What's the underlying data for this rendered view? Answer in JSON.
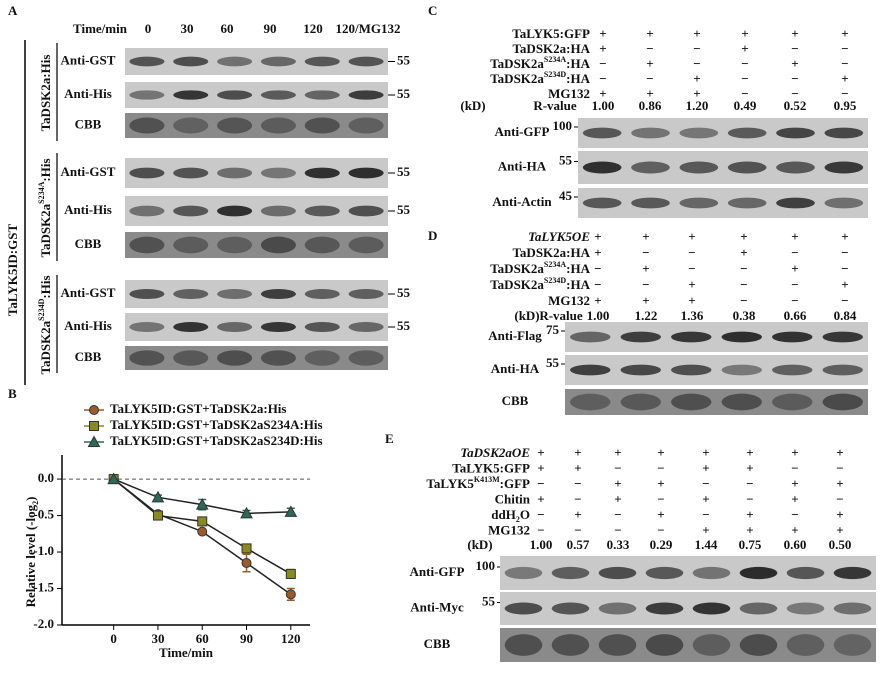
{
  "panels": {
    "A": {
      "label": "A",
      "time_label": "Time/min",
      "times": [
        "0",
        "30",
        "60",
        "90",
        "120",
        "120/MG132"
      ],
      "construct": "TaLYK5ID:GST",
      "groups": [
        {
          "name": {
            "text": "TaDSK2a",
            "after": ":His"
          },
          "rows": [
            "Anti-GST",
            "Anti-His",
            "CBB"
          ],
          "markers": [
            "55",
            "55"
          ]
        },
        {
          "name": {
            "text": "TaDSK2a",
            "sup": "S234A",
            "after": ":His"
          },
          "rows": [
            "Anti-GST",
            "Anti-His",
            "CBB"
          ],
          "markers": [
            "55",
            "55"
          ]
        },
        {
          "name": {
            "text": "TaDSK2a",
            "sup": "S234D",
            "after": ":His"
          },
          "rows": [
            "Anti-GST",
            "Anti-His",
            "CBB"
          ],
          "markers": [
            "55",
            "55"
          ]
        }
      ]
    },
    "C": {
      "label": "C",
      "kd": "(kD)",
      "r_label": "R-value",
      "conditions": [
        {
          "name": {
            "text": "TaLYK5:GFP"
          },
          "signs": [
            "+",
            "+",
            "+",
            "+",
            "+",
            "+"
          ]
        },
        {
          "name": {
            "text": "TaDSK2a:HA"
          },
          "signs": [
            "+",
            "−",
            "−",
            "+",
            "−",
            "−"
          ]
        },
        {
          "name": {
            "text": "TaDSK2a",
            "sup": "S234A",
            "after": ":HA"
          },
          "signs": [
            "−",
            "+",
            "−",
            "−",
            "+",
            "−"
          ]
        },
        {
          "name": {
            "text": "TaDSK2a",
            "sup": "S234D",
            "after": ":HA"
          },
          "signs": [
            "−",
            "−",
            "+",
            "−",
            "−",
            "+"
          ]
        },
        {
          "name": {
            "text": "MG132"
          },
          "signs": [
            "+",
            "+",
            "+",
            "−",
            "−",
            "−"
          ]
        }
      ],
      "r_values": [
        "1.00",
        "0.86",
        "1.20",
        "0.49",
        "0.52",
        "0.95"
      ],
      "blots": [
        {
          "name": "Anti-GFP",
          "marker": "100"
        },
        {
          "name": "Anti-HA",
          "marker": "55"
        },
        {
          "name": "Anti-Actin",
          "marker": "45"
        }
      ]
    },
    "D": {
      "label": "D",
      "kd": "(kD)",
      "r_label": "R-value",
      "conditions": [
        {
          "name": {
            "text": "TaLYK5OE",
            "italic": true
          },
          "signs": [
            "+",
            "+",
            "+",
            "+",
            "+",
            "+"
          ]
        },
        {
          "name": {
            "text": "TaDSK2a:HA"
          },
          "signs": [
            "+",
            "−",
            "−",
            "+",
            "−",
            "−"
          ]
        },
        {
          "name": {
            "text": "TaDSK2a",
            "sup": "S234A",
            "after": ":HA"
          },
          "signs": [
            "−",
            "+",
            "−",
            "−",
            "+",
            "−"
          ]
        },
        {
          "name": {
            "text": "TaDSK2a",
            "sup": "S234D",
            "after": ":HA"
          },
          "signs": [
            "−",
            "−",
            "+",
            "−",
            "−",
            "+"
          ]
        },
        {
          "name": {
            "text": "MG132"
          },
          "signs": [
            "+",
            "+",
            "+",
            "−",
            "−",
            "−"
          ]
        }
      ],
      "r_values": [
        "1.00",
        "1.22",
        "1.36",
        "0.38",
        "0.66",
        "0.84"
      ],
      "blots": [
        {
          "name": "Anti-Flag",
          "marker": "75"
        },
        {
          "name": "Anti-HA",
          "marker": "55"
        },
        {
          "name": "CBB"
        }
      ]
    },
    "E": {
      "label": "E",
      "kd": "(kD)",
      "conditions": [
        {
          "name": {
            "text": "TaDSK2aOE",
            "italic": true
          },
          "signs": [
            "+",
            "+",
            "+",
            "+",
            "+",
            "+",
            "+",
            "+"
          ]
        },
        {
          "name": {
            "text": "TaLYK5:GFP"
          },
          "signs": [
            "+",
            "+",
            "−",
            "−",
            "+",
            "+",
            "−",
            "−"
          ]
        },
        {
          "name": {
            "text": "TaLYK5",
            "sup": "K413M",
            "after": ":GFP"
          },
          "signs": [
            "−",
            "−",
            "+",
            "+",
            "−",
            "−",
            "+",
            "+"
          ]
        },
        {
          "name": {
            "text": "Chitin"
          },
          "signs": [
            "+",
            "−",
            "+",
            "−",
            "+",
            "−",
            "+",
            "−"
          ]
        },
        {
          "name": {
            "text": "ddH",
            "sub": "2",
            "after": "O"
          },
          "signs": [
            "−",
            "+",
            "−",
            "+",
            "−",
            "+",
            "−",
            "+"
          ]
        },
        {
          "name": {
            "text": "MG132"
          },
          "signs": [
            "−",
            "−",
            "−",
            "−",
            "+",
            "+",
            "+",
            "+"
          ]
        }
      ],
      "r_values": [
        "1.00",
        "0.57",
        "0.33",
        "0.29",
        "1.44",
        "0.75",
        "0.60",
        "0.50"
      ],
      "blots": [
        {
          "name": "Anti-GFP",
          "marker": "100"
        },
        {
          "name": "Anti-Myc",
          "marker": "55"
        },
        {
          "name": "CBB"
        }
      ]
    }
  },
  "chart_data": {
    "type": "line",
    "panel_label": "B",
    "x_label": "Time/min",
    "y_label": {
      "text": "Relative level (-log",
      "sub": "2",
      "after": ")"
    },
    "x": [
      0,
      30,
      60,
      90,
      120
    ],
    "xlim": [
      -35,
      133
    ],
    "xticks": [
      0,
      30,
      60,
      90,
      120
    ],
    "ylim": [
      -2.0,
      0.33
    ],
    "yticks": [
      {
        "value": 0,
        "label": "0.0"
      },
      -0.5,
      {
        "value": -1,
        "label": "-1.0"
      },
      -1.5,
      {
        "value": -2,
        "label": "-2.0"
      }
    ],
    "zero_line": true,
    "series": [
      {
        "name": "TaLYK5ID:GST+TaDSK2a:His",
        "color": "#9a5a2a",
        "marker": "circle",
        "values": [
          0,
          -0.48,
          -0.72,
          -1.15,
          -1.58
        ],
        "errors": [
          0,
          0.03,
          0.02,
          0.12,
          0.08
        ]
      },
      {
        "name": "TaLYK5ID:GST+TaDSK2aS234A:His",
        "color": "#8a8a20",
        "marker": "square",
        "values": [
          0,
          -0.5,
          -0.58,
          -0.95,
          -1.3
        ],
        "errors": [
          0,
          0.03,
          0.03,
          0.04,
          0.06
        ]
      },
      {
        "name": "TaLYK5ID:GST+TaDSK2aS234D:His",
        "color": "#2a6a5a",
        "marker": "triangle",
        "values": [
          0,
          -0.25,
          -0.35,
          -0.47,
          -0.45
        ],
        "errors": [
          0,
          0.03,
          0.07,
          0.04,
          0.05
        ]
      }
    ]
  }
}
